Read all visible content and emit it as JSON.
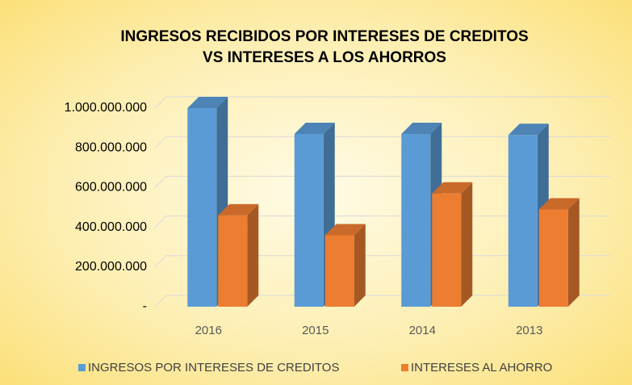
{
  "chart_data": {
    "type": "bar3d",
    "title": [
      "INGRESOS RECIBIDOS POR INTERESES DE CREDITOS",
      "VS INTERESES A LOS AHORROS"
    ],
    "categories": [
      "2016",
      "2015",
      "2014",
      "2013"
    ],
    "series": [
      {
        "name": "INGRESOS POR INTERESES DE CREDITOS",
        "color": "#5b9bd5",
        "values": [
          1000000000,
          870000000,
          870000000,
          865000000
        ]
      },
      {
        "name": "INTERESES AL AHORRO",
        "color": "#ed7d31",
        "values": [
          460000000,
          360000000,
          570000000,
          490000000
        ]
      }
    ],
    "ylim": [
      0,
      1000000000
    ],
    "yticks": [
      {
        "value": 0,
        "label": "-"
      },
      {
        "value": 200000000,
        "label": "200.000.000"
      },
      {
        "value": 400000000,
        "label": "400.000.000"
      },
      {
        "value": 600000000,
        "label": "600.000.000"
      },
      {
        "value": 800000000,
        "label": "800.000.000"
      },
      {
        "value": 1000000000,
        "label": "1.000.000.000"
      }
    ],
    "grid": true,
    "legend": "bottom"
  }
}
